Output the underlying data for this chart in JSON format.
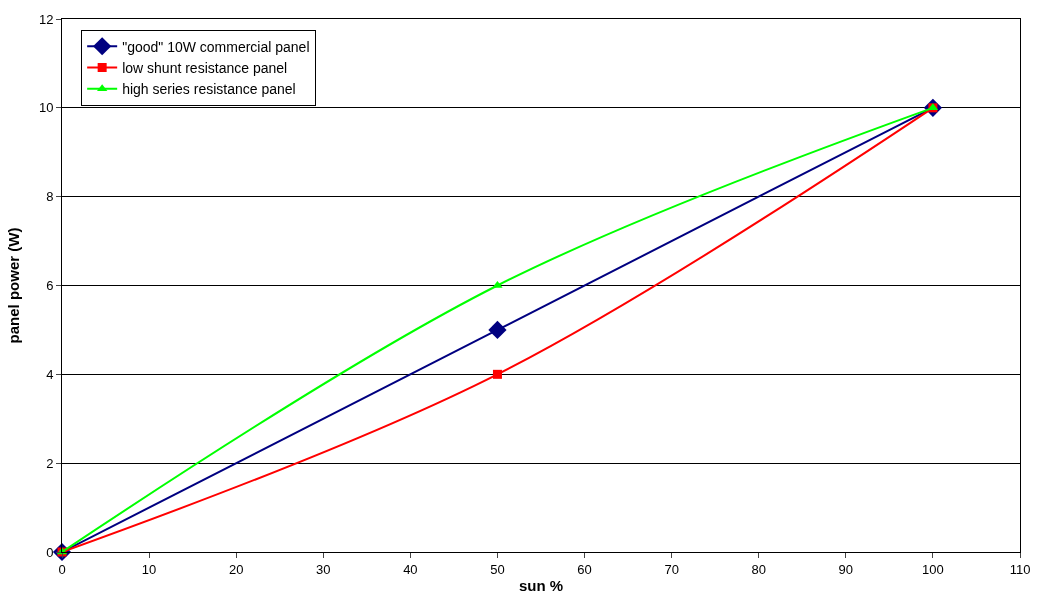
{
  "chart_data": {
    "type": "line",
    "xlabel": "sun %",
    "ylabel": "panel power (W)",
    "x": [
      0,
      50,
      100
    ],
    "series": [
      {
        "name": "\"good\" 10W commercial panel",
        "color": "#000080",
        "marker": "diamond",
        "values": [
          0,
          5,
          10
        ]
      },
      {
        "name": "low shunt resistance panel",
        "color": "#ff0000",
        "marker": "square",
        "values": [
          0,
          4,
          10
        ]
      },
      {
        "name": "high series resistance panel",
        "color": "#00ff00",
        "marker": "triangle",
        "values": [
          0,
          6,
          10
        ]
      }
    ],
    "xlim": [
      0,
      110
    ],
    "xticks": [
      0,
      10,
      20,
      30,
      40,
      50,
      60,
      70,
      80,
      90,
      100,
      110
    ],
    "ylim": [
      0,
      12
    ],
    "yticks": [
      0,
      2,
      4,
      6,
      8,
      10,
      12
    ],
    "grid": "y",
    "legend": "top left",
    "line_style": "solid"
  }
}
